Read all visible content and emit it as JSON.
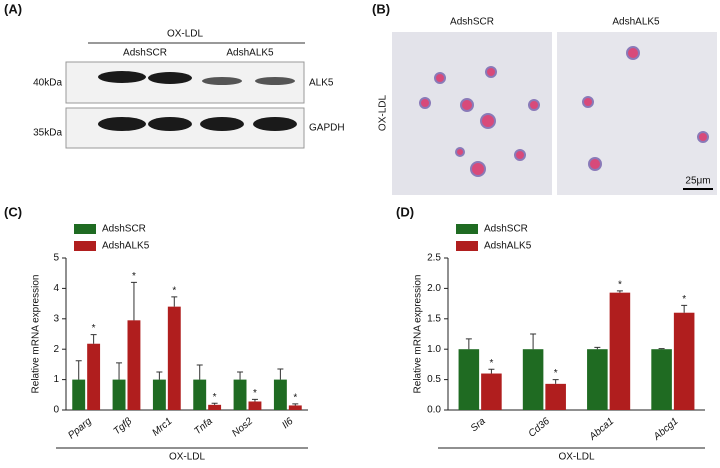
{
  "panels": {
    "a": {
      "label": "(A)",
      "group": "OX-LDL",
      "lanes": [
        "AdshSCR",
        "AdshALK5"
      ],
      "markers": [
        "40kDa",
        "35kDa"
      ],
      "proteins": [
        "ALK5",
        "GAPDH"
      ]
    },
    "b": {
      "label": "(B)",
      "columns": [
        "AdshSCR",
        "AdshALK5"
      ],
      "row": "OX-LDL",
      "scale": "25μm"
    }
  },
  "chart_data": [
    {
      "type": "bar",
      "label": "(C)",
      "ylabel": "Relative mRNA expression",
      "xlabel": "OX-LDL",
      "categories": [
        "Pparg",
        "Tgfβ",
        "Mrc1",
        "Tnfa",
        "Nos2",
        "Il6"
      ],
      "series": [
        {
          "name": "AdshSCR",
          "color": "#1f6b22",
          "values": [
            1,
            1,
            1,
            1,
            1,
            1
          ],
          "errors": [
            0.62,
            0.55,
            0.25,
            0.48,
            0.25,
            0.35
          ]
        },
        {
          "name": "AdshALK5",
          "color": "#b01e1e",
          "values": [
            2.18,
            2.95,
            3.4,
            0.17,
            0.28,
            0.15
          ],
          "errors": [
            0.3,
            1.25,
            0.32,
            0.05,
            0.07,
            0.05
          ],
          "significance": [
            "*",
            "*",
            "*",
            "*",
            "*",
            "*"
          ]
        }
      ],
      "ylim": [
        0,
        5
      ],
      "yticks": [
        0,
        1,
        2,
        3,
        4,
        5
      ]
    },
    {
      "type": "bar",
      "label": "(D)",
      "ylabel": "Relative mRNA expression",
      "xlabel": "OX-LDL",
      "categories": [
        "Sra",
        "Cd36",
        "Abca1",
        "Abcg1"
      ],
      "series": [
        {
          "name": "AdshSCR",
          "color": "#1f6b22",
          "values": [
            1,
            1,
            1,
            1
          ],
          "errors": [
            0.17,
            0.25,
            0.03,
            0.01
          ]
        },
        {
          "name": "AdshALK5",
          "color": "#b01e1e",
          "values": [
            0.6,
            0.43,
            1.93,
            1.6
          ],
          "errors": [
            0.07,
            0.07,
            0.03,
            0.12
          ],
          "significance": [
            "*",
            "*",
            "*",
            "*"
          ]
        }
      ],
      "ylim": [
        0,
        2.5
      ],
      "yticks": [
        {
          "value": 0,
          "label": "0.0"
        },
        0.5,
        {
          "value": 1,
          "label": "1.0"
        },
        1.5,
        {
          "value": 2,
          "label": "2.0"
        },
        2.5
      ]
    }
  ]
}
